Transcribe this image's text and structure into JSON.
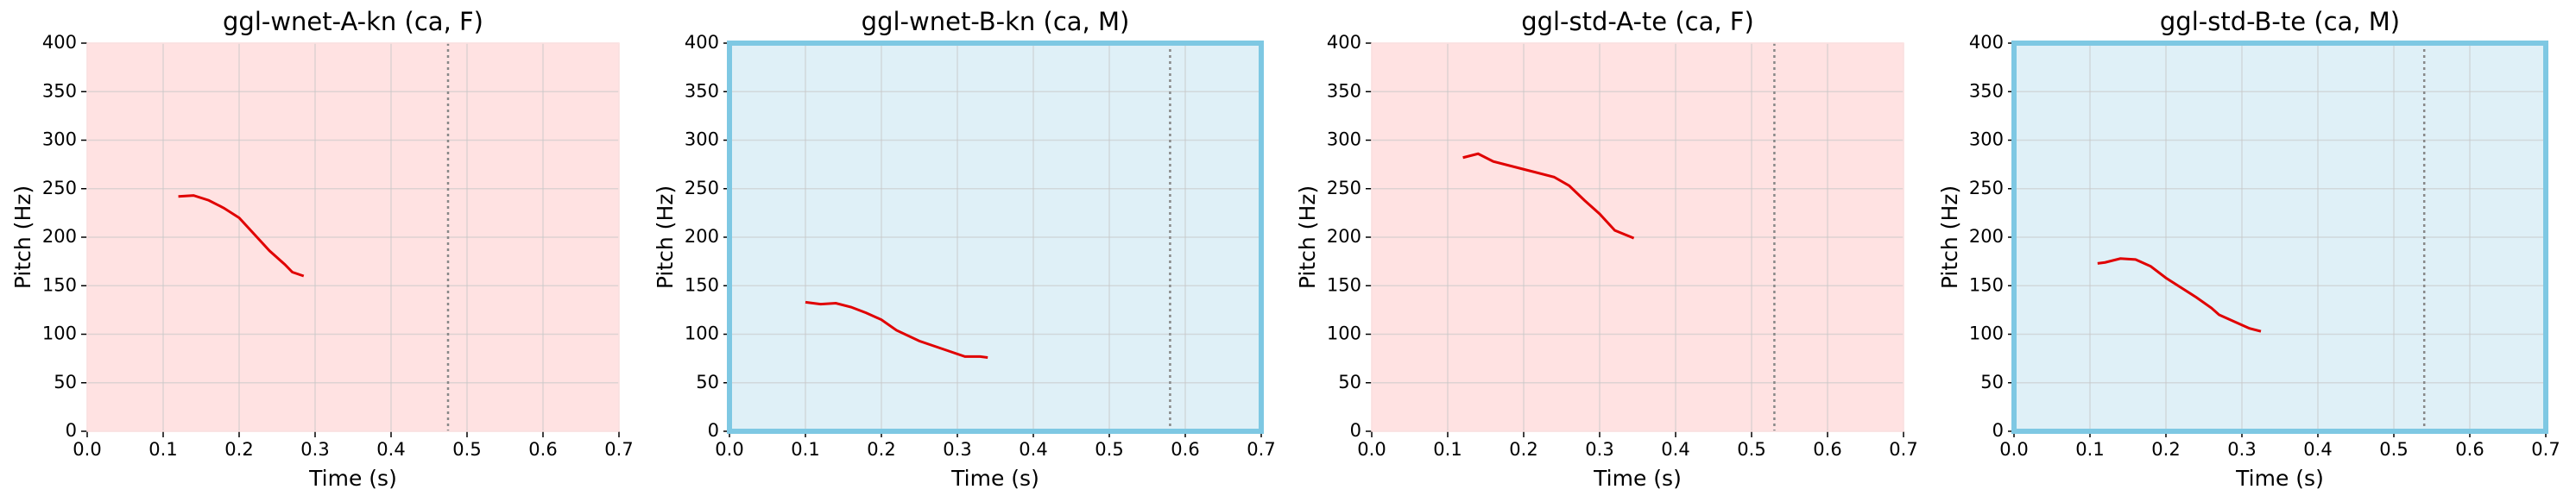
{
  "chart_data": [
    {
      "type": "line",
      "title": "ggl-wnet-A-kn (ca, F)",
      "xlabel": "Time (s)",
      "ylabel": "Pitch (Hz)",
      "x": [
        0.12,
        0.14,
        0.16,
        0.18,
        0.2,
        0.22,
        0.24,
        0.26,
        0.27,
        0.285
      ],
      "series": [
        {
          "color": "#e00000",
          "values": [
            242,
            243,
            238,
            230,
            220,
            203,
            186,
            172,
            164,
            160
          ]
        }
      ],
      "marker_x": 0.475,
      "xlim": [
        0,
        0.7
      ],
      "ylim": [
        0,
        400
      ],
      "xticks": [
        {
          "value": 0,
          "label": "0.0"
        },
        0.1,
        0.2,
        0.3,
        0.4,
        0.5,
        0.6,
        0.7
      ],
      "yticks": [
        0,
        50,
        100,
        150,
        200,
        250,
        300,
        350,
        400
      ],
      "grid": true,
      "background": "#ffe2e2",
      "border": null
    },
    {
      "type": "line",
      "title": "ggl-wnet-B-kn (ca, M)",
      "xlabel": "Time (s)",
      "ylabel": "Pitch (Hz)",
      "x": [
        0.1,
        0.12,
        0.14,
        0.16,
        0.18,
        0.2,
        0.22,
        0.25,
        0.28,
        0.31,
        0.33,
        0.34
      ],
      "series": [
        {
          "color": "#e00000",
          "values": [
            133,
            131,
            132,
            128,
            122,
            115,
            104,
            93,
            85,
            77,
            77,
            76
          ]
        }
      ],
      "marker_x": 0.58,
      "xlim": [
        0,
        0.7
      ],
      "ylim": [
        0,
        400
      ],
      "xticks": [
        {
          "value": 0,
          "label": "0.0"
        },
        0.1,
        0.2,
        0.3,
        0.4,
        0.5,
        0.6,
        0.7
      ],
      "yticks": [
        0,
        50,
        100,
        150,
        200,
        250,
        300,
        350,
        400
      ],
      "grid": true,
      "background": "#dff0f7",
      "border": "#7ec8e3"
    },
    {
      "type": "line",
      "title": "ggl-std-A-te (ca, F)",
      "xlabel": "Time (s)",
      "ylabel": "Pitch (Hz)",
      "x": [
        0.12,
        0.14,
        0.16,
        0.2,
        0.24,
        0.26,
        0.28,
        0.3,
        0.32,
        0.345
      ],
      "series": [
        {
          "color": "#e00000",
          "values": [
            282,
            286,
            278,
            270,
            262,
            253,
            238,
            224,
            207,
            199
          ]
        }
      ],
      "marker_x": 0.53,
      "xlim": [
        0,
        0.7
      ],
      "ylim": [
        0,
        400
      ],
      "xticks": [
        {
          "value": 0,
          "label": "0.0"
        },
        0.1,
        0.2,
        0.3,
        0.4,
        0.5,
        0.6,
        0.7
      ],
      "yticks": [
        0,
        50,
        100,
        150,
        200,
        250,
        300,
        350,
        400
      ],
      "grid": true,
      "background": "#ffe2e2",
      "border": null
    },
    {
      "type": "line",
      "title": "ggl-std-B-te (ca, M)",
      "xlabel": "Time (s)",
      "ylabel": "Pitch (Hz)",
      "x": [
        0.11,
        0.12,
        0.14,
        0.16,
        0.18,
        0.2,
        0.22,
        0.24,
        0.26,
        0.27,
        0.29,
        0.31,
        0.325
      ],
      "series": [
        {
          "color": "#e00000",
          "values": [
            173,
            174,
            178,
            177,
            170,
            158,
            148,
            138,
            127,
            120,
            113,
            106,
            103
          ]
        }
      ],
      "marker_x": 0.54,
      "xlim": [
        0,
        0.7
      ],
      "ylim": [
        0,
        400
      ],
      "xticks": [
        {
          "value": 0,
          "label": "0.0"
        },
        0.1,
        0.2,
        0.3,
        0.4,
        0.5,
        0.6,
        0.7
      ],
      "yticks": [
        0,
        50,
        100,
        150,
        200,
        250,
        300,
        350,
        400
      ],
      "grid": true,
      "background": "#dff0f7",
      "border": "#7ec8e3"
    }
  ]
}
